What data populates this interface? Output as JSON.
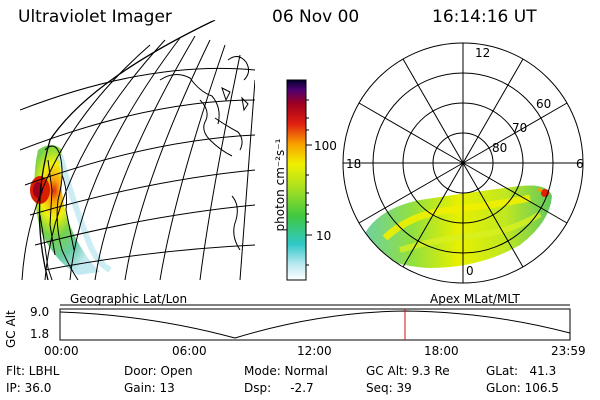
{
  "header": {
    "instrument": "Ultraviolet Imager",
    "date": "06 Nov 00",
    "time": "16:14:16 UT"
  },
  "colorbar": {
    "label": "photon cm⁻²s⁻¹",
    "ticks": [
      "100",
      "10"
    ]
  },
  "polar_plot": {
    "mlt_labels": [
      "12",
      "18",
      "6",
      "0"
    ],
    "lat_labels": [
      "60",
      "70",
      "80"
    ]
  },
  "timeline": {
    "left_label": "Geographic Lat/Lon",
    "right_label": "Apex MLat/MLT",
    "y_axis_label": "GC Alt",
    "y_ticks": [
      "9.0",
      "1.8"
    ],
    "x_ticks": [
      "00:00",
      "06:00",
      "12:00",
      "18:00",
      "23:59"
    ],
    "marker_time": "16:14"
  },
  "status": {
    "flt": "Flt: LBHL",
    "ip": "IP: 36.0",
    "door": "Door: Open",
    "gain": "Gain: 13",
    "mode": "Mode: Normal",
    "dsp": "Dsp:     -2.7",
    "gc_alt": "GC Alt: 9.3 Re",
    "seq": "Seq: 39",
    "glat": "GLat:   41.3",
    "glon": "GLon: 106.5"
  }
}
